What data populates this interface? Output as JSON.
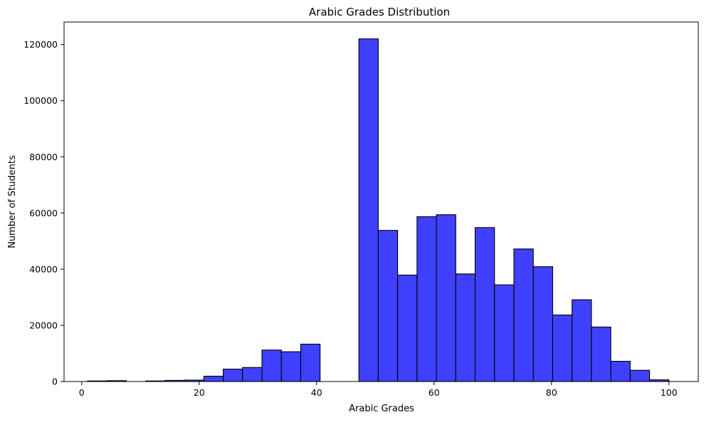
{
  "chart_data": {
    "type": "bar",
    "title": "Arabic Grades Distribution",
    "xlabel": "Arabic Grades",
    "ylabel": "Number of Students",
    "xlim": [
      -3,
      105
    ],
    "ylim": [
      0,
      128000
    ],
    "x_ticks": [
      0,
      20,
      40,
      60,
      80,
      100
    ],
    "y_ticks": [
      0,
      20000,
      40000,
      60000,
      80000,
      100000,
      120000
    ],
    "bar_color": "#4040ff",
    "edge_color": "#000000",
    "bin_edges": [
      1,
      4.3,
      7.6,
      10.9,
      14.2,
      17.5,
      20.8,
      24.1,
      27.4,
      30.7,
      34.0,
      37.3,
      40.6,
      43.9,
      47.2,
      50.5,
      53.8,
      57.1,
      60.4,
      63.7,
      67.0,
      70.3,
      73.6,
      76.9,
      80.2,
      83.5,
      86.8,
      90.1,
      93.4,
      96.7,
      100.0
    ],
    "values": [
      200,
      300,
      0,
      200,
      400,
      500,
      1900,
      4400,
      5000,
      11200,
      10600,
      13300,
      0,
      0,
      122000,
      53800,
      37900,
      58700,
      59400,
      38300,
      54800,
      34400,
      47200,
      40900,
      23700,
      29100,
      19400,
      7200,
      4000,
      600
    ],
    "grid": false,
    "legend": "none"
  }
}
